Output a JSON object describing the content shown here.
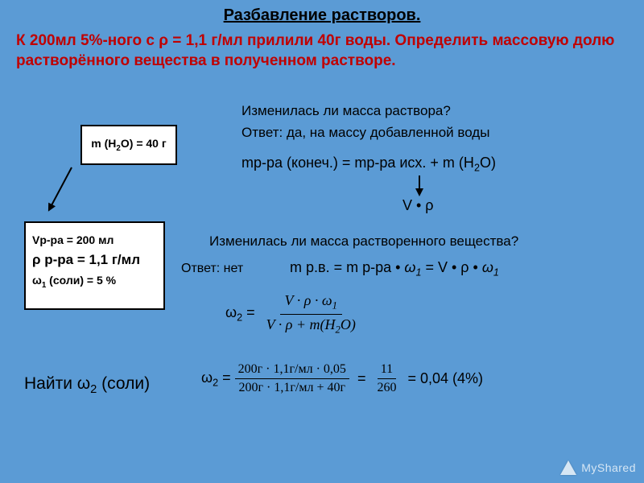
{
  "title": "Разбавление растворов.",
  "problem": "К 200мл 5%-ного  с ρ = 1,1 г/мл прилили 40г воды. Определить массовую долю растворённого вещества в полученном растворе.",
  "box1": "m (H₂O) = 40 г",
  "box2_line1": "Vр-ра = 200 мл",
  "box2_line2": "ρ р-ра = 1,1 г/мл",
  "box2_line3": "ω₁ (соли) = 5 %",
  "q1": "Изменилась ли масса раствора?",
  "a1": "Ответ: да, на массу добавленной воды",
  "eq1": "mр-ра (конеч.) = mр-ра исх. + m (H₂O)",
  "eq2": "V • ρ",
  "q2": "Изменилась ли масса растворенного вещества?",
  "a2": "Ответ: нет",
  "eq3_part1": "m р.в. = m р-ра • ",
  "eq3_omega": "ω₁",
  "eq3_part2": "  = V • ρ • ",
  "frac1_label": "ω₂ = ",
  "frac1_num": "V · ρ · ω₁",
  "frac1_den": "V · ρ + m(H₂O)",
  "frac2_label": "ω₂ =",
  "frac2_num": "200г · 1,1г/мл · 0,05",
  "frac2_den": "200г · 1,1г/мл + 40г",
  "frac3_num": "11",
  "frac3_den": "260",
  "result": "= 0,04  (4%)",
  "find": "Найти ω₂ (соли)",
  "watermark": "MyShared"
}
